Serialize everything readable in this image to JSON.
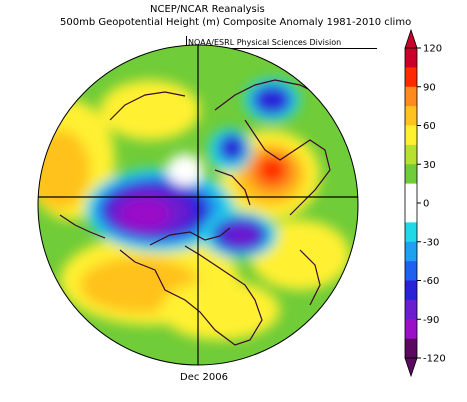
{
  "header": {
    "title": "NCEP/NCAR Reanalysis",
    "subtitle": "500mb Geopotential Height (m) Composite Anomaly 1981-2010 climo",
    "credit": "NOAA/ESRL Physical Sciences Division"
  },
  "footer": {
    "date": "Dec 2006"
  },
  "colorbar": {
    "labels": [
      "120",
      "90",
      "60",
      "30",
      "0",
      "-30",
      "-60",
      "-90",
      "-120"
    ],
    "colors": [
      "#c8002a",
      "#ff2b00",
      "#ff8a1e",
      "#ffc21e",
      "#fff030",
      "#b8e030",
      "#70cc38",
      "#ffffff",
      "#ffffff",
      "#20d8e8",
      "#1fa0f0",
      "#2060f0",
      "#2a22d8",
      "#6a1ed0",
      "#9a10c8",
      "#5a0860"
    ]
  },
  "map": {
    "projection": "north-polar-stereographic",
    "features": [
      "ridge-north-pacific",
      "trough-alaska-canada",
      "ridge-scandinavia",
      "trough-arctic-siberia"
    ]
  }
}
